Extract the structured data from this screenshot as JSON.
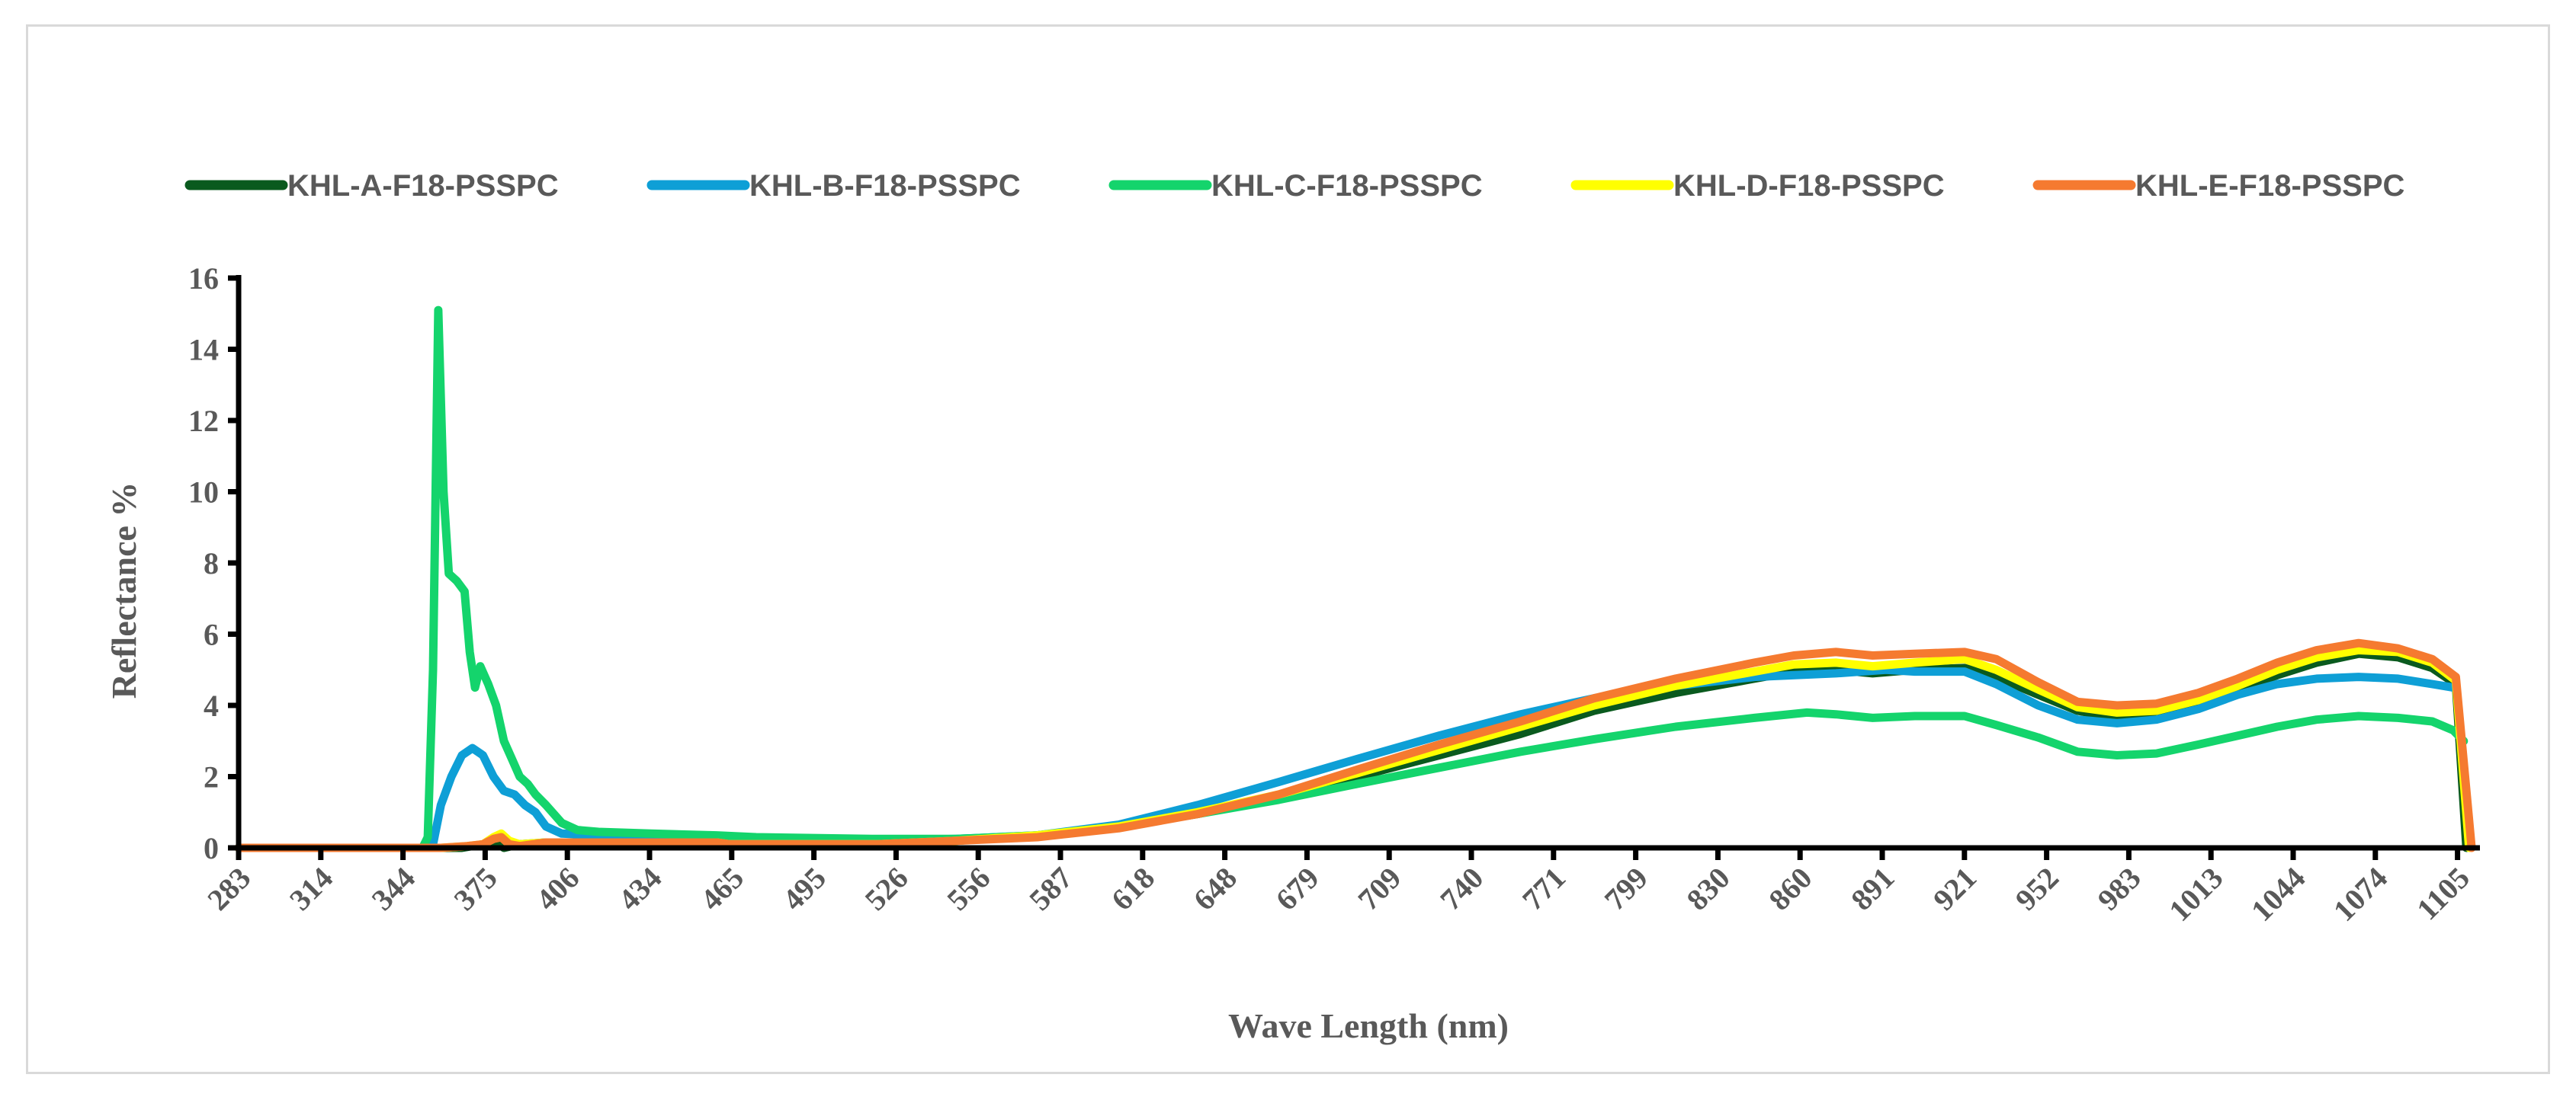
{
  "chart_data": {
    "type": "line",
    "title": "",
    "xlabel": "Wave Length (nm)",
    "ylabel": "Reflectance %",
    "ylim": [
      0,
      16
    ],
    "yticks": [
      0,
      2,
      4,
      6,
      8,
      10,
      12,
      14,
      16
    ],
    "xticks": [
      "283",
      "314",
      "344",
      "375",
      "406",
      "434",
      "465",
      "495",
      "526",
      "556",
      "587",
      "618",
      "648",
      "679",
      "709",
      "740",
      "771",
      "799",
      "830",
      "860",
      "891",
      "921",
      "952",
      "983",
      "1013",
      "1044",
      "1074",
      "1105"
    ],
    "xlim": [
      283,
      1135
    ],
    "grid": false,
    "legend_position": "top",
    "series": [
      {
        "name": "KHL-A-F18-PSSPC",
        "color": "#0a5a1e",
        "points": [
          [
            283,
            0
          ],
          [
            350,
            0
          ],
          [
            356,
            0
          ],
          [
            368,
            0
          ],
          [
            376,
            0.1
          ],
          [
            380,
            0.2
          ],
          [
            384,
            0
          ],
          [
            390,
            0.1
          ],
          [
            400,
            0.15
          ],
          [
            430,
            0.15
          ],
          [
            465,
            0.15
          ],
          [
            470,
            0.1
          ],
          [
            526,
            0.1
          ],
          [
            556,
            0.2
          ],
          [
            587,
            0.35
          ],
          [
            618,
            0.6
          ],
          [
            648,
            0.95
          ],
          [
            679,
            1.45
          ],
          [
            709,
            2.0
          ],
          [
            740,
            2.6
          ],
          [
            771,
            3.2
          ],
          [
            799,
            3.85
          ],
          [
            830,
            4.35
          ],
          [
            860,
            4.75
          ],
          [
            875,
            4.95
          ],
          [
            891,
            5.0
          ],
          [
            905,
            4.9
          ],
          [
            921,
            5.0
          ],
          [
            940,
            5.05
          ],
          [
            952,
            4.8
          ],
          [
            968,
            4.3
          ],
          [
            983,
            3.85
          ],
          [
            998,
            3.65
          ],
          [
            1013,
            3.75
          ],
          [
            1029,
            4.05
          ],
          [
            1044,
            4.45
          ],
          [
            1059,
            4.85
          ],
          [
            1074,
            5.2
          ],
          [
            1090,
            5.45
          ],
          [
            1105,
            5.35
          ],
          [
            1118,
            5.05
          ],
          [
            1127,
            4.6
          ],
          [
            1131,
            0
          ]
        ]
      },
      {
        "name": "KHL-B-F18-PSSPC",
        "color": "#0e9fd6",
        "points": [
          [
            283,
            0
          ],
          [
            355,
            0
          ],
          [
            357,
            0.1
          ],
          [
            360,
            1.2
          ],
          [
            364,
            2.0
          ],
          [
            368,
            2.6
          ],
          [
            372,
            2.8
          ],
          [
            376,
            2.6
          ],
          [
            380,
            2.0
          ],
          [
            384,
            1.6
          ],
          [
            388,
            1.5
          ],
          [
            392,
            1.2
          ],
          [
            396,
            1.0
          ],
          [
            400,
            0.6
          ],
          [
            406,
            0.4
          ],
          [
            420,
            0.35
          ],
          [
            440,
            0.3
          ],
          [
            465,
            0.3
          ],
          [
            480,
            0.25
          ],
          [
            526,
            0.2
          ],
          [
            556,
            0.25
          ],
          [
            587,
            0.35
          ],
          [
            618,
            0.65
          ],
          [
            648,
            1.2
          ],
          [
            679,
            1.85
          ],
          [
            709,
            2.5
          ],
          [
            740,
            3.15
          ],
          [
            771,
            3.75
          ],
          [
            799,
            4.2
          ],
          [
            830,
            4.55
          ],
          [
            860,
            4.8
          ],
          [
            891,
            4.9
          ],
          [
            910,
            5.0
          ],
          [
            921,
            4.95
          ],
          [
            940,
            4.95
          ],
          [
            952,
            4.6
          ],
          [
            968,
            4.0
          ],
          [
            983,
            3.6
          ],
          [
            998,
            3.5
          ],
          [
            1013,
            3.6
          ],
          [
            1029,
            3.9
          ],
          [
            1044,
            4.3
          ],
          [
            1059,
            4.6
          ],
          [
            1074,
            4.75
          ],
          [
            1090,
            4.8
          ],
          [
            1105,
            4.75
          ],
          [
            1118,
            4.6
          ],
          [
            1126,
            4.5
          ]
        ]
      },
      {
        "name": "KHL-C-F18-PSSPC",
        "color": "#14d46c",
        "points": [
          [
            283,
            0
          ],
          [
            353,
            0
          ],
          [
            355,
            0.3
          ],
          [
            357,
            5.0
          ],
          [
            359,
            15.1
          ],
          [
            361,
            10
          ],
          [
            363,
            7.7
          ],
          [
            366,
            7.5
          ],
          [
            369,
            7.2
          ],
          [
            371,
            5.5
          ],
          [
            373,
            4.5
          ],
          [
            375,
            5.1
          ],
          [
            378,
            4.6
          ],
          [
            381,
            4.0
          ],
          [
            384,
            3.0
          ],
          [
            387,
            2.5
          ],
          [
            390,
            2.0
          ],
          [
            393,
            1.8
          ],
          [
            396,
            1.5
          ],
          [
            400,
            1.2
          ],
          [
            406,
            0.7
          ],
          [
            412,
            0.5
          ],
          [
            420,
            0.45
          ],
          [
            440,
            0.4
          ],
          [
            465,
            0.35
          ],
          [
            480,
            0.3
          ],
          [
            526,
            0.25
          ],
          [
            556,
            0.25
          ],
          [
            587,
            0.35
          ],
          [
            618,
            0.6
          ],
          [
            648,
            0.95
          ],
          [
            679,
            1.35
          ],
          [
            709,
            1.8
          ],
          [
            740,
            2.25
          ],
          [
            771,
            2.7
          ],
          [
            799,
            3.05
          ],
          [
            830,
            3.4
          ],
          [
            860,
            3.65
          ],
          [
            880,
            3.8
          ],
          [
            891,
            3.75
          ],
          [
            905,
            3.65
          ],
          [
            921,
            3.7
          ],
          [
            940,
            3.7
          ],
          [
            952,
            3.45
          ],
          [
            968,
            3.1
          ],
          [
            983,
            2.7
          ],
          [
            998,
            2.6
          ],
          [
            1013,
            2.65
          ],
          [
            1029,
            2.9
          ],
          [
            1044,
            3.15
          ],
          [
            1059,
            3.4
          ],
          [
            1074,
            3.6
          ],
          [
            1090,
            3.7
          ],
          [
            1105,
            3.65
          ],
          [
            1118,
            3.55
          ],
          [
            1126,
            3.3
          ],
          [
            1130,
            3.0
          ]
        ]
      },
      {
        "name": "KHL-D-F18-PSSPC",
        "color": "#ffff00",
        "points": [
          [
            283,
            0
          ],
          [
            350,
            0
          ],
          [
            360,
            0
          ],
          [
            370,
            0.05
          ],
          [
            376,
            0.1
          ],
          [
            380,
            0.3
          ],
          [
            383,
            0.4
          ],
          [
            386,
            0.2
          ],
          [
            390,
            0.1
          ],
          [
            400,
            0.15
          ],
          [
            430,
            0.15
          ],
          [
            465,
            0.15
          ],
          [
            470,
            0.1
          ],
          [
            526,
            0.1
          ],
          [
            556,
            0.2
          ],
          [
            587,
            0.35
          ],
          [
            618,
            0.6
          ],
          [
            648,
            1.0
          ],
          [
            679,
            1.5
          ],
          [
            709,
            2.1
          ],
          [
            740,
            2.75
          ],
          [
            771,
            3.4
          ],
          [
            799,
            4.0
          ],
          [
            830,
            4.55
          ],
          [
            860,
            4.95
          ],
          [
            875,
            5.15
          ],
          [
            891,
            5.2
          ],
          [
            905,
            5.1
          ],
          [
            921,
            5.2
          ],
          [
            940,
            5.3
          ],
          [
            952,
            5.0
          ],
          [
            968,
            4.45
          ],
          [
            983,
            3.95
          ],
          [
            998,
            3.8
          ],
          [
            1013,
            3.85
          ],
          [
            1029,
            4.15
          ],
          [
            1044,
            4.55
          ],
          [
            1059,
            5.0
          ],
          [
            1074,
            5.35
          ],
          [
            1090,
            5.55
          ],
          [
            1105,
            5.5
          ],
          [
            1118,
            5.2
          ],
          [
            1127,
            4.7
          ],
          [
            1132,
            0
          ]
        ]
      },
      {
        "name": "KHL-E-F18-PSSPC",
        "color": "#f57a30",
        "points": [
          [
            283,
            0
          ],
          [
            350,
            0
          ],
          [
            360,
            0
          ],
          [
            370,
            0.05
          ],
          [
            376,
            0.1
          ],
          [
            380,
            0.25
          ],
          [
            383,
            0.3
          ],
          [
            386,
            0.1
          ],
          [
            390,
            0.05
          ],
          [
            400,
            0.15
          ],
          [
            430,
            0.15
          ],
          [
            465,
            0.15
          ],
          [
            470,
            0.1
          ],
          [
            526,
            0.1
          ],
          [
            556,
            0.2
          ],
          [
            587,
            0.3
          ],
          [
            618,
            0.55
          ],
          [
            648,
            0.95
          ],
          [
            679,
            1.5
          ],
          [
            709,
            2.2
          ],
          [
            740,
            2.9
          ],
          [
            771,
            3.55
          ],
          [
            799,
            4.2
          ],
          [
            830,
            4.75
          ],
          [
            860,
            5.2
          ],
          [
            875,
            5.4
          ],
          [
            891,
            5.5
          ],
          [
            905,
            5.4
          ],
          [
            921,
            5.45
          ],
          [
            940,
            5.5
          ],
          [
            952,
            5.3
          ],
          [
            968,
            4.65
          ],
          [
            983,
            4.1
          ],
          [
            998,
            4.0
          ],
          [
            1013,
            4.05
          ],
          [
            1029,
            4.35
          ],
          [
            1044,
            4.75
          ],
          [
            1059,
            5.2
          ],
          [
            1074,
            5.55
          ],
          [
            1090,
            5.75
          ],
          [
            1105,
            5.6
          ],
          [
            1118,
            5.3
          ],
          [
            1127,
            4.8
          ],
          [
            1133,
            0
          ]
        ]
      }
    ]
  }
}
